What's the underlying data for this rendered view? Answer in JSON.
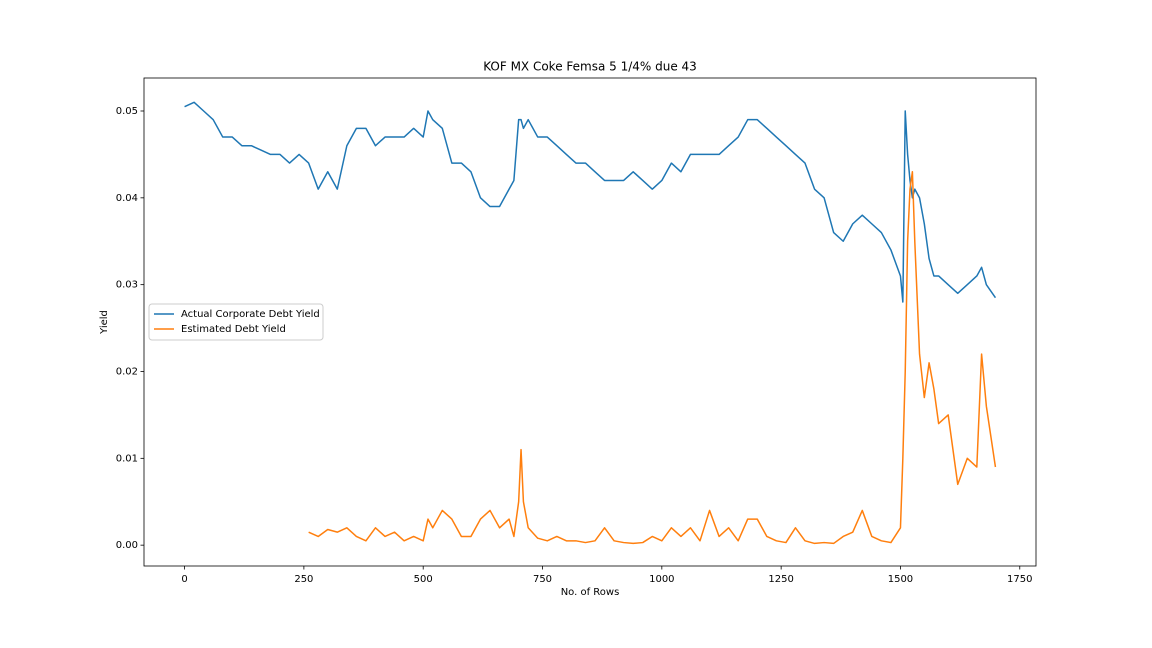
{
  "chart_data": {
    "type": "line",
    "title": "KOF MX Coke Femsa 5 1/4% due 43",
    "x_label": "No. of Rows",
    "y_label": "Yield",
    "x": [
      0,
      20,
      40,
      60,
      80,
      100,
      120,
      140,
      160,
      180,
      200,
      220,
      240,
      260,
      280,
      300,
      320,
      340,
      360,
      380,
      400,
      420,
      440,
      460,
      480,
      500,
      510,
      520,
      540,
      560,
      580,
      600,
      620,
      640,
      660,
      680,
      690,
      700,
      705,
      710,
      720,
      740,
      760,
      780,
      800,
      820,
      840,
      860,
      880,
      900,
      920,
      940,
      960,
      980,
      1000,
      1020,
      1040,
      1060,
      1080,
      1100,
      1120,
      1140,
      1160,
      1180,
      1200,
      1220,
      1240,
      1260,
      1280,
      1300,
      1320,
      1340,
      1360,
      1380,
      1400,
      1420,
      1440,
      1460,
      1480,
      1500,
      1505,
      1510,
      1515,
      1520,
      1525,
      1530,
      1540,
      1550,
      1560,
      1570,
      1580,
      1600,
      1620,
      1640,
      1660,
      1670,
      1680,
      1699
    ],
    "series": [
      {
        "name": "Actual Corporate Debt Yield",
        "color": "#1f77b4",
        "values": [
          0.0505,
          0.051,
          0.05,
          0.049,
          0.047,
          0.047,
          0.046,
          0.046,
          0.0455,
          0.045,
          0.045,
          0.044,
          0.045,
          0.044,
          0.041,
          0.043,
          0.041,
          0.046,
          0.048,
          0.048,
          0.046,
          0.047,
          0.047,
          0.047,
          0.048,
          0.047,
          0.05,
          0.049,
          0.048,
          0.044,
          0.044,
          0.043,
          0.04,
          0.039,
          0.039,
          0.041,
          0.042,
          0.049,
          0.049,
          0.048,
          0.049,
          0.047,
          0.047,
          0.046,
          0.045,
          0.044,
          0.044,
          0.043,
          0.042,
          0.042,
          0.042,
          0.043,
          0.042,
          0.041,
          0.042,
          0.044,
          0.043,
          0.045,
          0.045,
          0.045,
          0.045,
          0.046,
          0.047,
          0.049,
          0.049,
          0.048,
          0.047,
          0.046,
          0.045,
          0.044,
          0.041,
          0.04,
          0.036,
          0.035,
          0.037,
          0.038,
          0.037,
          0.036,
          0.034,
          0.031,
          0.028,
          0.05,
          0.045,
          0.042,
          0.04,
          0.041,
          0.04,
          0.037,
          0.033,
          0.031,
          0.031,
          0.03,
          0.029,
          0.03,
          0.031,
          0.032,
          0.03,
          0.0285
        ]
      },
      {
        "name": "Estimated Debt Yield",
        "color": "#ff7f0e",
        "values": [
          null,
          null,
          null,
          null,
          null,
          null,
          null,
          null,
          null,
          null,
          null,
          null,
          null,
          0.0015,
          0.001,
          0.0018,
          0.0015,
          0.002,
          0.001,
          0.0005,
          0.002,
          0.001,
          0.0015,
          0.0005,
          0.001,
          0.0005,
          0.003,
          0.002,
          0.004,
          0.003,
          0.001,
          0.001,
          0.003,
          0.004,
          0.002,
          0.003,
          0.001,
          0.005,
          0.011,
          0.005,
          0.002,
          0.0008,
          0.0005,
          0.001,
          0.0005,
          0.0005,
          0.0003,
          0.0005,
          0.002,
          0.0005,
          0.0003,
          0.0002,
          0.0003,
          0.001,
          0.0005,
          0.002,
          0.001,
          0.002,
          0.0005,
          0.004,
          0.001,
          0.002,
          0.0005,
          0.003,
          0.003,
          0.001,
          0.0005,
          0.0003,
          0.002,
          0.0005,
          0.0002,
          0.0003,
          0.0002,
          0.001,
          0.0015,
          0.004,
          0.001,
          0.0005,
          0.0003,
          0.002,
          0.01,
          0.02,
          0.035,
          0.041,
          0.043,
          0.035,
          0.022,
          0.017,
          0.021,
          0.018,
          0.014,
          0.015,
          0.007,
          0.01,
          0.009,
          0.022,
          0.016,
          0.009
        ]
      }
    ],
    "xlim": [
      -85,
      1784
    ],
    "ylim": [
      -0.0024,
      0.0538
    ],
    "xticks": [
      0,
      250,
      500,
      750,
      1000,
      1250,
      1500,
      1750
    ],
    "yticks": [
      {
        "value": 0,
        "label": "0.00"
      },
      {
        "value": 0.01,
        "label": "0.01"
      },
      {
        "value": 0.02,
        "label": "0.02"
      },
      {
        "value": 0.03,
        "label": "0.03"
      },
      {
        "value": 0.04,
        "label": "0.04"
      },
      {
        "value": 0.05,
        "label": "0.05"
      }
    ],
    "legend": "center left"
  }
}
